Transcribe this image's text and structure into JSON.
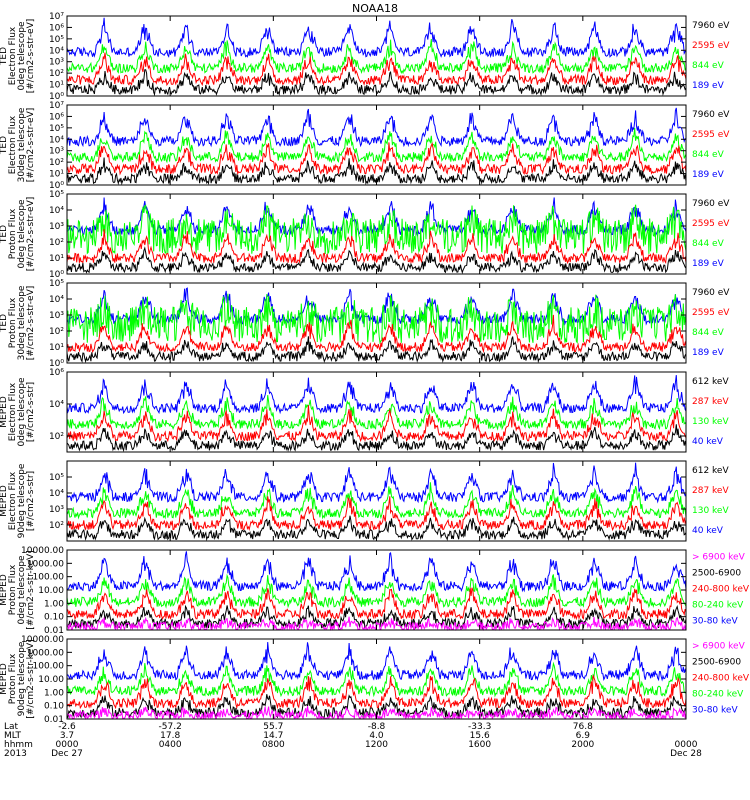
{
  "title": "NOAA18",
  "colors": {
    "blue": "#0000ff",
    "red": "#ff0000",
    "green": "#00ff00",
    "black": "#000000",
    "magenta": "#ff00ff"
  },
  "chart_data": [
    {
      "type": "line",
      "ylabel": [
        "TED",
        "Electron Flux",
        "0deg telescope",
        "[#/cm2-s-str-eV]"
      ],
      "yscale": "log",
      "ylim": [
        1,
        10000000
      ],
      "ticks": [
        {
          "v": 1,
          "t": "10⁰"
        },
        {
          "v": 10,
          "t": "10¹"
        },
        {
          "v": 100,
          "t": "10²"
        },
        {
          "v": 1000,
          "t": "10³"
        },
        {
          "v": 10000,
          "t": "10⁴"
        },
        {
          "v": 100000,
          "t": "10⁵"
        },
        {
          "v": 1000000,
          "t": "10⁶"
        },
        {
          "v": 10000000,
          "t": "10⁷"
        }
      ],
      "legend": [
        {
          "name": "7960 eV",
          "color": "#000000"
        },
        {
          "name": "2595 eV",
          "color": "#ff0000"
        },
        {
          "name": "844 eV",
          "color": "#00ff00"
        },
        {
          "name": "189 eV",
          "color": "#0000ff"
        }
      ]
    },
    {
      "type": "line",
      "ylabel": [
        "TED",
        "Electron Flux",
        "30deg telescope",
        "[#/cm2-s-str-eV]"
      ],
      "yscale": "log",
      "ylim": [
        1,
        10000000
      ],
      "ticks": [
        {
          "v": 1,
          "t": "10⁰"
        },
        {
          "v": 10,
          "t": "10¹"
        },
        {
          "v": 100,
          "t": "10²"
        },
        {
          "v": 1000,
          "t": "10³"
        },
        {
          "v": 10000,
          "t": "10⁴"
        },
        {
          "v": 100000,
          "t": "10⁵"
        },
        {
          "v": 1000000,
          "t": "10⁶"
        },
        {
          "v": 10000000,
          "t": "10⁷"
        }
      ],
      "legend": [
        {
          "name": "7960 eV",
          "color": "#000000"
        },
        {
          "name": "2595 eV",
          "color": "#ff0000"
        },
        {
          "name": "844 eV",
          "color": "#00ff00"
        },
        {
          "name": "189 eV",
          "color": "#0000ff"
        }
      ]
    },
    {
      "type": "line",
      "ylabel": [
        "TED",
        "Proton Flux",
        "0deg telescope",
        "[#/cm2-s-str-eV]"
      ],
      "yscale": "log",
      "ylim": [
        1,
        100000
      ],
      "ticks": [
        {
          "v": 1,
          "t": "10⁰"
        },
        {
          "v": 10,
          "t": "10¹"
        },
        {
          "v": 100,
          "t": "10²"
        },
        {
          "v": 1000,
          "t": "10³"
        },
        {
          "v": 10000,
          "t": "10⁴"
        },
        {
          "v": 100000,
          "t": "10⁵"
        }
      ],
      "legend": [
        {
          "name": "7960 eV",
          "color": "#000000"
        },
        {
          "name": "2595 eV",
          "color": "#ff0000"
        },
        {
          "name": "844 eV",
          "color": "#00ff00"
        },
        {
          "name": "189 eV",
          "color": "#0000ff"
        }
      ]
    },
    {
      "type": "line",
      "ylabel": [
        "TED",
        "Proton Flux",
        "30deg telescope",
        "[#/cm2-s-str-eV]"
      ],
      "yscale": "log",
      "ylim": [
        1,
        100000
      ],
      "ticks": [
        {
          "v": 1,
          "t": "10⁰"
        },
        {
          "v": 10,
          "t": "10¹"
        },
        {
          "v": 100,
          "t": "10²"
        },
        {
          "v": 1000,
          "t": "10³"
        },
        {
          "v": 10000,
          "t": "10⁴"
        },
        {
          "v": 100000,
          "t": "10⁵"
        }
      ],
      "legend": [
        {
          "name": "7960 eV",
          "color": "#000000"
        },
        {
          "name": "2595 eV",
          "color": "#ff0000"
        },
        {
          "name": "844 eV",
          "color": "#00ff00"
        },
        {
          "name": "189 eV",
          "color": "#0000ff"
        }
      ]
    },
    {
      "type": "line",
      "ylabel": [
        "MEPED",
        "Electron Flux",
        "0deg telescope",
        "[#/cm2-s-str]"
      ],
      "yscale": "log",
      "ylim": [
        10,
        1000000
      ],
      "ticks": [
        {
          "v": 100,
          "t": "10²"
        },
        {
          "v": 10000,
          "t": "10⁴"
        },
        {
          "v": 1000000,
          "t": "10⁶"
        }
      ],
      "legend": [
        {
          "name": "612 keV",
          "color": "#000000"
        },
        {
          "name": "287 keV",
          "color": "#ff0000"
        },
        {
          "name": "130 keV",
          "color": "#00ff00"
        },
        {
          "name": "40 keV",
          "color": "#0000ff"
        }
      ]
    },
    {
      "type": "line",
      "ylabel": [
        "MEPED",
        "Electron Flux",
        "90deg telescope",
        "[#/cm2-s-str]"
      ],
      "yscale": "log",
      "ylim": [
        10,
        1000000
      ],
      "ticks": [
        {
          "v": 100,
          "t": "10²"
        },
        {
          "v": 1000,
          "t": "10³"
        },
        {
          "v": 10000,
          "t": "10⁴"
        },
        {
          "v": 100000,
          "t": "10⁵"
        }
      ],
      "legend": [
        {
          "name": "612 keV",
          "color": "#000000"
        },
        {
          "name": "287 keV",
          "color": "#ff0000"
        },
        {
          "name": "130 keV",
          "color": "#00ff00"
        },
        {
          "name": "40 keV",
          "color": "#0000ff"
        }
      ]
    },
    {
      "type": "line",
      "ylabel": [
        "MEPED",
        "Proton Flux",
        "0deg telescope",
        "[#/cm2-s-str-keV]"
      ],
      "yscale": "log",
      "ylim": [
        0.01,
        10000
      ],
      "ticks": [
        {
          "v": 0.01,
          "t": "0.01"
        },
        {
          "v": 0.1,
          "t": "0.10"
        },
        {
          "v": 1,
          "t": "1.00"
        },
        {
          "v": 10,
          "t": "10.00"
        },
        {
          "v": 100,
          "t": "100.00"
        },
        {
          "v": 1000,
          "t": "1000.00"
        },
        {
          "v": 10000,
          "t": "10000.00"
        }
      ],
      "legend": [
        {
          "name": "> 6900 keV",
          "color": "#ff00ff"
        },
        {
          "name": "2500-6900",
          "color": "#000000"
        },
        {
          "name": "240-800 keV",
          "color": "#ff0000"
        },
        {
          "name": "80-240 keV",
          "color": "#00ff00"
        },
        {
          "name": "30-80 keV",
          "color": "#0000ff"
        }
      ]
    },
    {
      "type": "line",
      "ylabel": [
        "MEPED",
        "Proton Flux",
        "90deg telescope",
        "[#/cm2-s-str-keV]"
      ],
      "yscale": "log",
      "ylim": [
        0.01,
        10000
      ],
      "ticks": [
        {
          "v": 0.01,
          "t": "0.01"
        },
        {
          "v": 0.1,
          "t": "0.10"
        },
        {
          "v": 1,
          "t": "1.00"
        },
        {
          "v": 10,
          "t": "10.00"
        },
        {
          "v": 100,
          "t": "100.00"
        },
        {
          "v": 1000,
          "t": "1000.00"
        },
        {
          "v": 10000,
          "t": "10000.00"
        }
      ],
      "legend": [
        {
          "name": "> 6900 keV",
          "color": "#ff00ff"
        },
        {
          "name": "2500-6900",
          "color": "#000000"
        },
        {
          "name": "240-800 keV",
          "color": "#ff0000"
        },
        {
          "name": "80-240 keV",
          "color": "#00ff00"
        },
        {
          "name": "30-80 keV",
          "color": "#0000ff"
        }
      ]
    }
  ],
  "xaxis": {
    "row_labels": [
      "Lat",
      "MLT",
      "hhmm",
      "2013"
    ],
    "ticks": [
      {
        "lat": "-2.6",
        "mlt": "3.7",
        "hhmm": "0000",
        "date": "Dec 27"
      },
      {
        "lat": "-57.2",
        "mlt": "17.8",
        "hhmm": "0400",
        "date": ""
      },
      {
        "lat": "55.7",
        "mlt": "14.7",
        "hhmm": "0800",
        "date": ""
      },
      {
        "lat": "-8.8",
        "mlt": "4.0",
        "hhmm": "1200",
        "date": ""
      },
      {
        "lat": "-33.3",
        "mlt": "15.6",
        "hhmm": "1600",
        "date": ""
      },
      {
        "lat": "76.8",
        "mlt": "6.9",
        "hhmm": "2000",
        "date": ""
      },
      {
        "lat": "",
        "mlt": "",
        "hhmm": "0000",
        "date": "Dec 28"
      }
    ]
  }
}
